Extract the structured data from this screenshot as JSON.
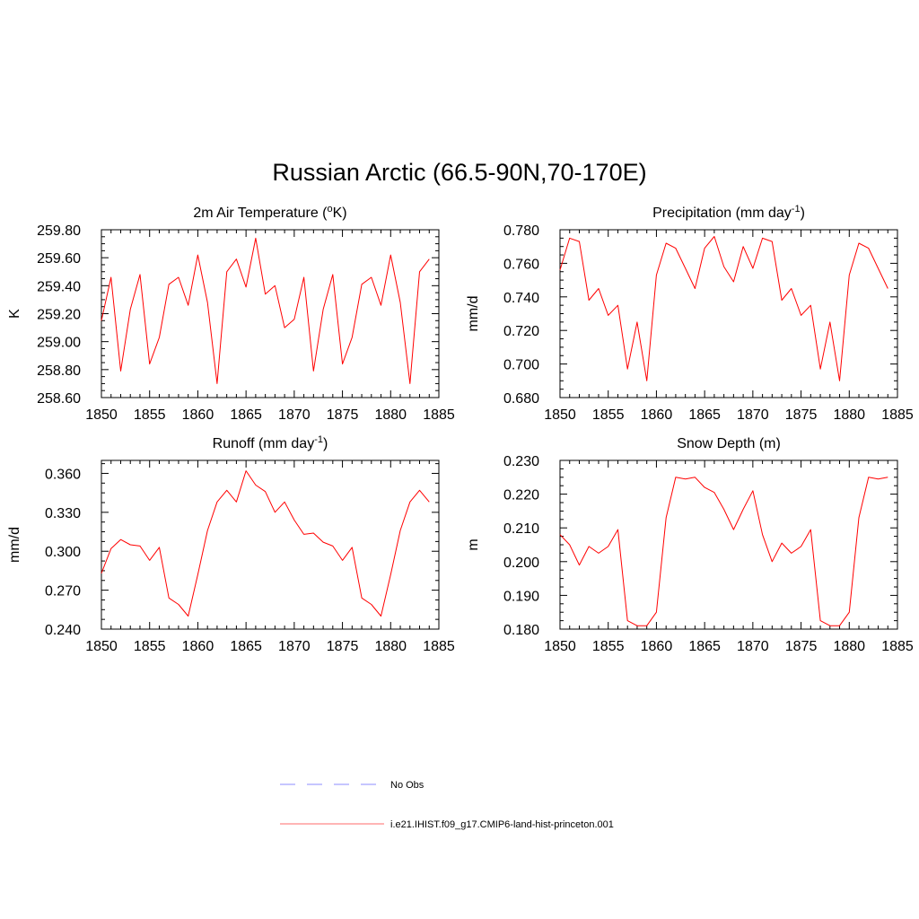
{
  "figure": {
    "title": "Russian Arctic (66.5-90N,70-170E)"
  },
  "legend": {
    "items": [
      {
        "label": "No Obs",
        "color": "#8c8cff",
        "style": "dashed"
      },
      {
        "label": "i.e21.IHIST.f09_g17.CMIP6-land-hist-princeton.001",
        "color": "#ff6b6b",
        "style": "solid"
      }
    ]
  },
  "chart_data": [
    {
      "type": "line",
      "title": "2m Air Temperature (oK)",
      "title_parts": {
        "main": "2m Air Temperature (",
        "sup": "o",
        "tail": "K)"
      },
      "xlabel": "",
      "ylabel": "K",
      "xlim": [
        1850,
        1885
      ],
      "ylim": [
        258.6,
        259.8
      ],
      "x_ticks": [
        1850,
        1855,
        1860,
        1865,
        1870,
        1875,
        1880,
        1885
      ],
      "y_ticks": [
        "258.60",
        "258.80",
        "259.00",
        "259.20",
        "259.40",
        "259.60",
        "259.80"
      ],
      "grid": false,
      "x": [
        1850,
        1851,
        1852,
        1853,
        1854,
        1855,
        1856,
        1857,
        1858,
        1859,
        1860,
        1861,
        1862,
        1863,
        1864,
        1865,
        1866,
        1867,
        1868,
        1869,
        1870,
        1871,
        1872,
        1873,
        1874,
        1875,
        1876,
        1877,
        1878,
        1879,
        1880,
        1881,
        1882,
        1883,
        1884
      ],
      "series": [
        {
          "color": "#ff0000",
          "values": [
            259.15,
            259.46,
            258.79,
            259.23,
            259.48,
            258.84,
            259.03,
            259.41,
            259.46,
            259.26,
            259.62,
            259.28,
            258.7,
            259.5,
            259.59,
            259.39,
            259.74,
            259.34,
            259.4,
            259.1,
            259.16,
            259.46,
            258.79,
            259.23,
            259.48,
            258.84,
            259.03,
            259.41,
            259.46,
            259.26,
            259.62,
            259.28,
            258.7,
            259.5,
            259.59
          ]
        }
      ]
    },
    {
      "type": "line",
      "title": "Precipitation (mm day-1)",
      "title_parts": {
        "main": "Precipitation (mm day",
        "sup": "-1",
        "tail": ")"
      },
      "xlabel": "",
      "ylabel": "mm/d",
      "xlim": [
        1850,
        1885
      ],
      "ylim": [
        0.68,
        0.78
      ],
      "x_ticks": [
        1850,
        1855,
        1860,
        1865,
        1870,
        1875,
        1880,
        1885
      ],
      "y_ticks": [
        "0.680",
        "0.700",
        "0.720",
        "0.740",
        "0.760",
        "0.780"
      ],
      "grid": false,
      "x": [
        1850,
        1851,
        1852,
        1853,
        1854,
        1855,
        1856,
        1857,
        1858,
        1859,
        1860,
        1861,
        1862,
        1863,
        1864,
        1865,
        1866,
        1867,
        1868,
        1869,
        1870,
        1871,
        1872,
        1873,
        1874,
        1875,
        1876,
        1877,
        1878,
        1879,
        1880,
        1881,
        1882,
        1883,
        1884
      ],
      "series": [
        {
          "color": "#ff0000",
          "values": [
            0.756,
            0.775,
            0.773,
            0.738,
            0.745,
            0.729,
            0.735,
            0.697,
            0.725,
            0.69,
            0.753,
            0.772,
            0.769,
            0.757,
            0.745,
            0.769,
            0.776,
            0.758,
            0.749,
            0.77,
            0.757,
            0.775,
            0.773,
            0.738,
            0.745,
            0.729,
            0.735,
            0.697,
            0.725,
            0.69,
            0.753,
            0.772,
            0.769,
            0.757,
            0.745
          ]
        }
      ]
    },
    {
      "type": "line",
      "title": "Runoff (mm day-1)",
      "title_parts": {
        "main": "Runoff (mm day",
        "sup": "-1",
        "tail": ")"
      },
      "xlabel": "",
      "ylabel": "mm/d",
      "xlim": [
        1850,
        1885
      ],
      "ylim": [
        0.24,
        0.37
      ],
      "x_ticks": [
        1850,
        1855,
        1860,
        1865,
        1870,
        1875,
        1880,
        1885
      ],
      "y_ticks": [
        "0.240",
        "0.270",
        "0.300",
        "0.330",
        "0.360"
      ],
      "y_tick_values": [
        0.24,
        0.27,
        0.3,
        0.33,
        0.36
      ],
      "grid": false,
      "x": [
        1850,
        1851,
        1852,
        1853,
        1854,
        1855,
        1856,
        1857,
        1858,
        1859,
        1860,
        1861,
        1862,
        1863,
        1864,
        1865,
        1866,
        1867,
        1868,
        1869,
        1870,
        1871,
        1872,
        1873,
        1874,
        1875,
        1876,
        1877,
        1878,
        1879,
        1880,
        1881,
        1882,
        1883,
        1884
      ],
      "series": [
        {
          "color": "#ff0000",
          "values": [
            0.283,
            0.302,
            0.309,
            0.305,
            0.304,
            0.293,
            0.303,
            0.264,
            0.259,
            0.25,
            0.282,
            0.316,
            0.338,
            0.347,
            0.338,
            0.362,
            0.351,
            0.346,
            0.33,
            0.338,
            0.324,
            0.313,
            0.314,
            0.307,
            0.304,
            0.293,
            0.303,
            0.264,
            0.259,
            0.25,
            0.282,
            0.316,
            0.338,
            0.347,
            0.338
          ]
        }
      ]
    },
    {
      "type": "line",
      "title": "Snow Depth (m)",
      "title_parts": {
        "main": "Snow Depth (m)",
        "sup": "",
        "tail": ""
      },
      "xlabel": "",
      "ylabel": "m",
      "xlim": [
        1850,
        1885
      ],
      "ylim": [
        0.18,
        0.23
      ],
      "x_ticks": [
        1850,
        1855,
        1860,
        1865,
        1870,
        1875,
        1880,
        1885
      ],
      "y_ticks": [
        "0.180",
        "0.190",
        "0.200",
        "0.210",
        "0.220",
        "0.230"
      ],
      "grid": false,
      "x": [
        1850,
        1851,
        1852,
        1853,
        1854,
        1855,
        1856,
        1857,
        1858,
        1859,
        1860,
        1861,
        1862,
        1863,
        1864,
        1865,
        1866,
        1867,
        1868,
        1869,
        1870,
        1871,
        1872,
        1873,
        1874,
        1875,
        1876,
        1877,
        1878,
        1879,
        1880,
        1881,
        1882,
        1883,
        1884
      ],
      "series": [
        {
          "color": "#ff0000",
          "values": [
            0.208,
            0.205,
            0.199,
            0.2045,
            0.2025,
            0.2045,
            0.2095,
            0.1825,
            0.181,
            0.181,
            0.185,
            0.213,
            0.225,
            0.2245,
            0.225,
            0.222,
            0.2205,
            0.2155,
            0.2095,
            0.2155,
            0.221,
            0.208,
            0.2,
            0.2055,
            0.2025,
            0.2045,
            0.2095,
            0.1825,
            0.181,
            0.181,
            0.185,
            0.213,
            0.225,
            0.2245,
            0.225
          ]
        }
      ]
    }
  ]
}
